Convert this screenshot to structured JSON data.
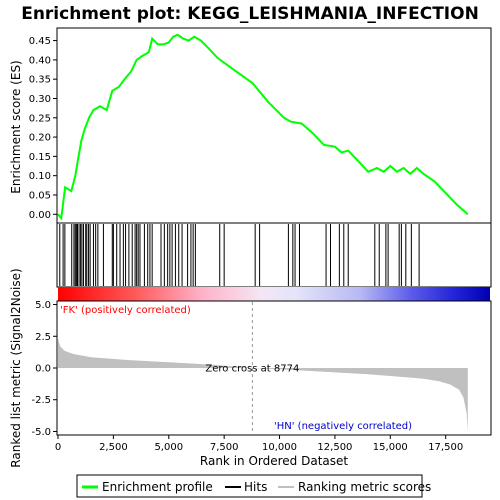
{
  "chart_data": {
    "type": "line",
    "title": "Enrichment plot: KEGG_LEISHMANIA_INFECTION",
    "colors": {
      "enrichment_line": "#00ff00",
      "hits": "#000000",
      "metric_fill": "#c0c0c0",
      "positive_label": "#ff0000",
      "negative_label": "#0000cc",
      "zero_cross_line": "#999999"
    },
    "es_panel": {
      "ylabel": "Enrichment score (ES)",
      "ylim": [
        -0.02,
        0.48
      ],
      "yticks": [
        0.0,
        0.05,
        0.1,
        0.15,
        0.2,
        0.25,
        0.3,
        0.35,
        0.4,
        0.45
      ],
      "ytick_labels": [
        "0.00",
        "0.05",
        "0.10",
        "0.15",
        "0.20",
        "0.25",
        "0.30",
        "0.35",
        "0.40",
        "0.45"
      ],
      "series": [
        {
          "x": [
            0,
            150,
            320,
            600,
            780,
            900,
            1050,
            1200,
            1400,
            1600,
            1900,
            2200,
            2450,
            2750,
            3000,
            3300,
            3550,
            3800,
            4100,
            4250,
            4500,
            4750,
            5000,
            5200,
            5400,
            5650,
            5900,
            6150,
            6450,
            6800,
            7200,
            7800,
            8774,
            9500,
            10200,
            10500,
            11000,
            11500,
            12000,
            12500,
            12800,
            13100,
            13600,
            14000,
            14400,
            14700,
            15000,
            15300,
            15600,
            15900,
            16200,
            16500,
            17000,
            17500,
            18000,
            18500
          ],
          "y": [
            0.0,
            -0.01,
            0.07,
            0.06,
            0.1,
            0.14,
            0.19,
            0.22,
            0.25,
            0.27,
            0.28,
            0.27,
            0.32,
            0.33,
            0.35,
            0.37,
            0.4,
            0.41,
            0.42,
            0.455,
            0.44,
            0.44,
            0.445,
            0.46,
            0.465,
            0.455,
            0.45,
            0.46,
            0.45,
            0.43,
            0.405,
            0.38,
            0.34,
            0.29,
            0.25,
            0.24,
            0.235,
            0.21,
            0.18,
            0.175,
            0.16,
            0.165,
            0.135,
            0.11,
            0.12,
            0.11,
            0.125,
            0.11,
            0.12,
            0.105,
            0.12,
            0.105,
            0.085,
            0.055,
            0.025,
            0.0
          ]
        }
      ]
    },
    "hits": [
      80,
      230,
      310,
      620,
      720,
      780,
      830,
      880,
      950,
      1020,
      1080,
      1150,
      1250,
      1300,
      1380,
      1450,
      1600,
      1700,
      1800,
      2050,
      2450,
      2500,
      2650,
      2800,
      2950,
      3050,
      3200,
      3350,
      3480,
      3550,
      3620,
      3700,
      3900,
      4050,
      4150,
      4250,
      4650,
      4800,
      4950,
      5050,
      5150,
      5300,
      5450,
      5600,
      5850,
      6000,
      6100,
      6200,
      7300,
      7500,
      8900,
      9100,
      10400,
      10600,
      10700,
      10900,
      12100,
      12300,
      12700,
      12900,
      13100,
      14300,
      14500,
      14800,
      14900,
      15400,
      15500,
      15700,
      15950,
      16300
    ],
    "metric_panel": {
      "ylabel": "Ranked list metric (Signal2Noise)",
      "ylim": [
        -5.2,
        5.2
      ],
      "yticks": [
        5.0,
        2.5,
        0.0,
        -2.5,
        -5.0
      ],
      "ytick_labels": [
        "5.0",
        "2.5",
        "0.0",
        "-2.5",
        "-5.0"
      ],
      "x": [
        0,
        100,
        300,
        700,
        1500,
        3000,
        5000,
        7000,
        8774,
        10000,
        12000,
        14000,
        15500,
        16500,
        17200,
        17700,
        18100,
        18300,
        18450,
        18500
      ],
      "y": [
        2.3,
        1.7,
        1.35,
        1.1,
        0.85,
        0.65,
        0.45,
        0.25,
        0.0,
        -0.1,
        -0.3,
        -0.5,
        -0.7,
        -0.85,
        -1.05,
        -1.3,
        -1.7,
        -2.3,
        -3.6,
        -5.0
      ],
      "positive_label": "'FK' (positively correlated)",
      "negative_label": "'HN' (negatively correlated)",
      "zero_cross_label": "Zero cross at 8774",
      "zero_cross": 8774
    },
    "xaxis": {
      "xlabel": "Rank in Ordered Dataset",
      "xlim": [
        0,
        19500
      ],
      "xticks": [
        0,
        2500,
        5000,
        7500,
        10000,
        12500,
        15000,
        17500
      ],
      "xtick_labels": [
        "0",
        "2,500",
        "5,000",
        "7,500",
        "10,000",
        "12,500",
        "15,000",
        "17,500"
      ]
    },
    "legend": {
      "position": "bottom",
      "items": [
        "Enrichment profile",
        "Hits",
        "Ranking metric scores"
      ]
    }
  }
}
